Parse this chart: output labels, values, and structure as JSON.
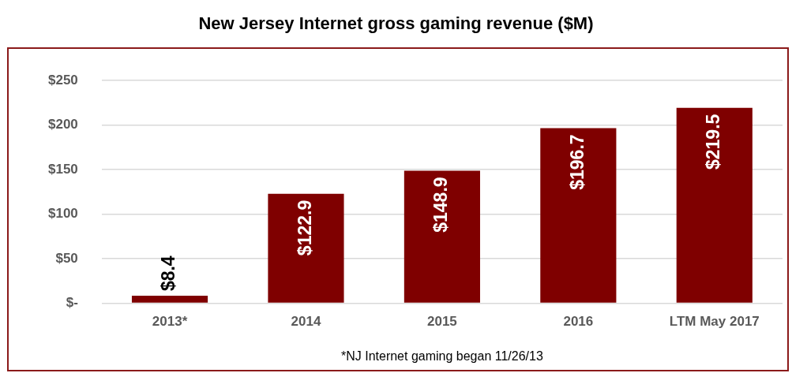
{
  "chart_data": {
    "type": "bar",
    "title": "New Jersey Internet gross gaming revenue ($M)",
    "categories": [
      "2013*",
      "2014",
      "2015",
      "2016",
      "LTM May 2017"
    ],
    "values": [
      8.4,
      122.9,
      148.9,
      196.7,
      219.5
    ],
    "value_labels": [
      "$8.4",
      "$122.9",
      "$148.9",
      "$196.7",
      "$219.5"
    ],
    "color": "#7f0000",
    "ylim": [
      0,
      250
    ],
    "yticks": [
      {
        "value": 0,
        "label": "$-"
      },
      {
        "value": 50,
        "label": "$50"
      },
      {
        "value": 100,
        "label": "$100"
      },
      {
        "value": 150,
        "label": "$150"
      },
      {
        "value": 200,
        "label": "$200"
      },
      {
        "value": 250,
        "label": "$250"
      }
    ],
    "grid": "y",
    "legend": false,
    "annotations": [
      "*NJ Internet gaming began 11/26/13"
    ]
  }
}
